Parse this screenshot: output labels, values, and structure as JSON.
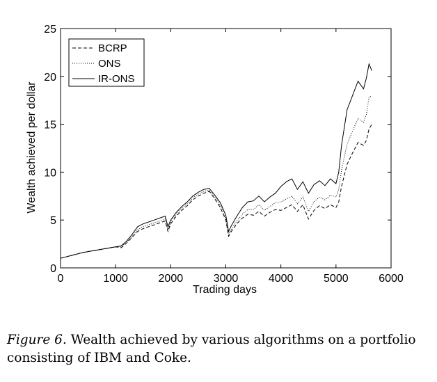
{
  "chart_data": {
    "type": "line",
    "title": "",
    "xlabel": "Trading days",
    "ylabel": "Wealth achieved per dollar",
    "xlim": [
      0,
      6000
    ],
    "ylim": [
      0,
      25
    ],
    "xticks": [
      "0",
      "1000",
      "2000",
      "3000",
      "4000",
      "5000",
      "6000"
    ],
    "yticks": [
      "0",
      "5",
      "10",
      "15",
      "20",
      "25"
    ],
    "grid": false,
    "legend_position": "top-left",
    "series": [
      {
        "name": "BCRP",
        "style": "dashed",
        "x": [
          0,
          200,
          400,
          600,
          800,
          1000,
          1100,
          1200,
          1300,
          1400,
          1500,
          1600,
          1700,
          1800,
          1900,
          1950,
          2000,
          2100,
          2200,
          2300,
          2400,
          2500,
          2600,
          2700,
          2800,
          2900,
          3000,
          3050,
          3100,
          3200,
          3300,
          3400,
          3500,
          3600,
          3700,
          3800,
          3900,
          4000,
          4100,
          4200,
          4300,
          4400,
          4500,
          4600,
          4700,
          4800,
          4900,
          5000,
          5050,
          5100,
          5200,
          5300,
          5400,
          5500,
          5550,
          5600,
          5650
        ],
        "y": [
          1.0,
          1.3,
          1.6,
          1.8,
          2.0,
          2.2,
          2.1,
          2.6,
          3.2,
          3.8,
          4.1,
          4.3,
          4.5,
          4.7,
          4.9,
          3.8,
          4.6,
          5.4,
          6.0,
          6.5,
          7.1,
          7.5,
          7.8,
          8.0,
          7.2,
          6.3,
          5.0,
          3.3,
          3.8,
          4.6,
          5.2,
          5.6,
          5.5,
          5.9,
          5.4,
          5.8,
          6.1,
          6.0,
          6.3,
          6.6,
          5.9,
          6.6,
          5.1,
          6.0,
          6.5,
          6.2,
          6.6,
          6.3,
          6.9,
          8.5,
          10.8,
          12.0,
          13.1,
          12.8,
          13.3,
          14.5,
          15.0
        ]
      },
      {
        "name": "ONS",
        "style": "dotted",
        "x": [
          0,
          200,
          400,
          600,
          800,
          1000,
          1100,
          1200,
          1300,
          1400,
          1500,
          1600,
          1700,
          1800,
          1900,
          1950,
          2000,
          2100,
          2200,
          2300,
          2400,
          2500,
          2600,
          2700,
          2800,
          2900,
          3000,
          3050,
          3100,
          3200,
          3300,
          3400,
          3500,
          3600,
          3700,
          3800,
          3900,
          4000,
          4100,
          4200,
          4300,
          4400,
          4500,
          4600,
          4700,
          4800,
          4900,
          5000,
          5050,
          5100,
          5200,
          5300,
          5400,
          5500,
          5550,
          5600,
          5650
        ],
        "y": [
          1.0,
          1.3,
          1.6,
          1.8,
          2.0,
          2.2,
          2.2,
          2.7,
          3.3,
          4.0,
          4.3,
          4.5,
          4.7,
          4.9,
          5.1,
          4.0,
          4.8,
          5.6,
          6.2,
          6.7,
          7.3,
          7.7,
          8.0,
          8.1,
          7.4,
          6.5,
          5.2,
          3.5,
          4.0,
          4.9,
          5.6,
          6.1,
          6.1,
          6.6,
          6.0,
          6.4,
          6.8,
          6.9,
          7.2,
          7.5,
          6.7,
          7.4,
          5.9,
          6.9,
          7.4,
          7.1,
          7.6,
          7.4,
          8.2,
          10.2,
          12.9,
          14.3,
          15.6,
          15.2,
          16.0,
          17.8,
          18.0
        ]
      },
      {
        "name": "IR-ONS",
        "style": "solid",
        "x": [
          0,
          200,
          400,
          600,
          800,
          1000,
          1100,
          1200,
          1300,
          1400,
          1500,
          1600,
          1700,
          1800,
          1900,
          1950,
          2000,
          2100,
          2200,
          2300,
          2400,
          2500,
          2600,
          2700,
          2800,
          2900,
          3000,
          3050,
          3100,
          3200,
          3300,
          3400,
          3500,
          3600,
          3700,
          3800,
          3900,
          4000,
          4100,
          4200,
          4300,
          4400,
          4500,
          4600,
          4700,
          4800,
          4900,
          5000,
          5050,
          5100,
          5200,
          5300,
          5400,
          5500,
          5550,
          5600,
          5650
        ],
        "y": [
          1.0,
          1.3,
          1.6,
          1.8,
          2.0,
          2.2,
          2.3,
          2.8,
          3.5,
          4.3,
          4.6,
          4.8,
          5.0,
          5.2,
          5.4,
          4.3,
          5.0,
          5.8,
          6.4,
          6.9,
          7.5,
          7.9,
          8.2,
          8.3,
          7.6,
          6.8,
          5.5,
          3.8,
          4.4,
          5.4,
          6.3,
          6.9,
          7.0,
          7.5,
          6.9,
          7.4,
          7.8,
          8.5,
          9.0,
          9.3,
          8.2,
          9.0,
          7.8,
          8.7,
          9.1,
          8.6,
          9.3,
          8.8,
          10.0,
          12.8,
          16.5,
          18.0,
          19.5,
          18.7,
          19.8,
          21.3,
          20.6
        ]
      }
    ]
  },
  "caption": {
    "label": "Figure 6.",
    "text": " Wealth achieved by various algorithms on a portfolio consisting of IBM and Coke."
  }
}
